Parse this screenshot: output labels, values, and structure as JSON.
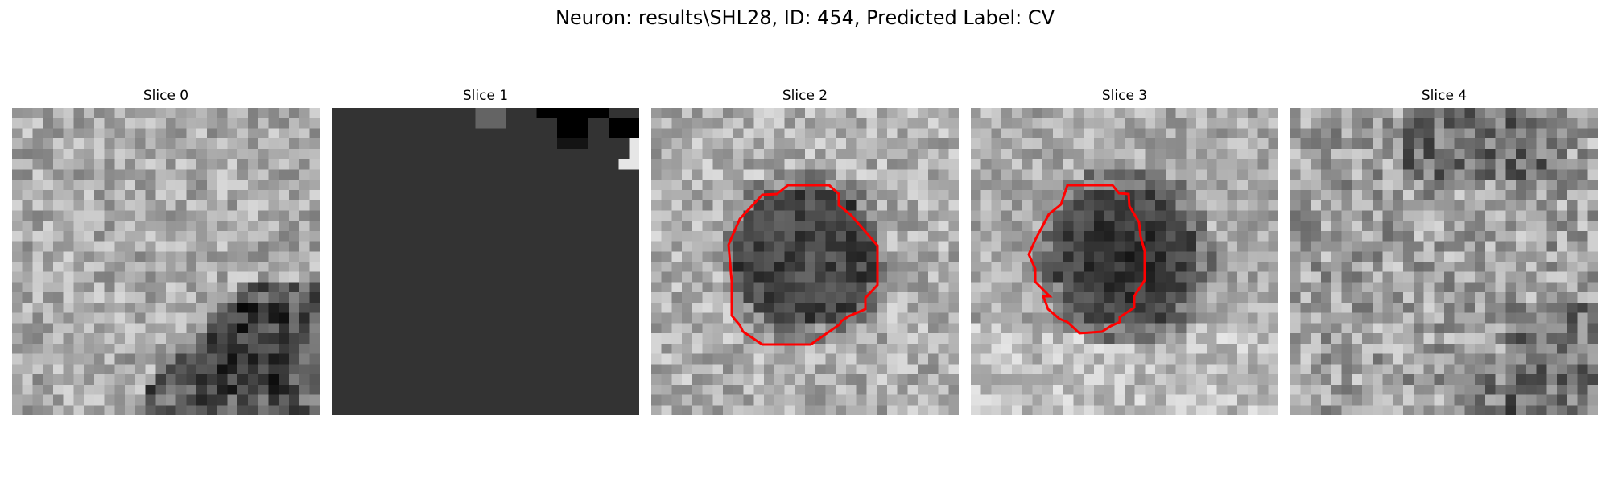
{
  "figure": {
    "title": "Neuron: results\\SHL28, ID: 454, Predicted Label: CV"
  },
  "panels": [
    {
      "title": "Slice 0",
      "pattern": "dark-band-lower-right",
      "has_contour": false
    },
    {
      "title": "Slice 1",
      "pattern": "mostly-uniform-dark",
      "has_contour": true
    },
    {
      "title": "Slice 2",
      "pattern": "central-dark-blob",
      "has_contour": true
    },
    {
      "title": "Slice 3",
      "pattern": "central-dark-blob",
      "has_contour": true
    },
    {
      "title": "Slice 4",
      "pattern": "textured-dark-patches",
      "has_contour": false
    }
  ],
  "colors": {
    "contour": "#ff0000",
    "background": "#ffffff",
    "uniform_fill": "#333333"
  }
}
